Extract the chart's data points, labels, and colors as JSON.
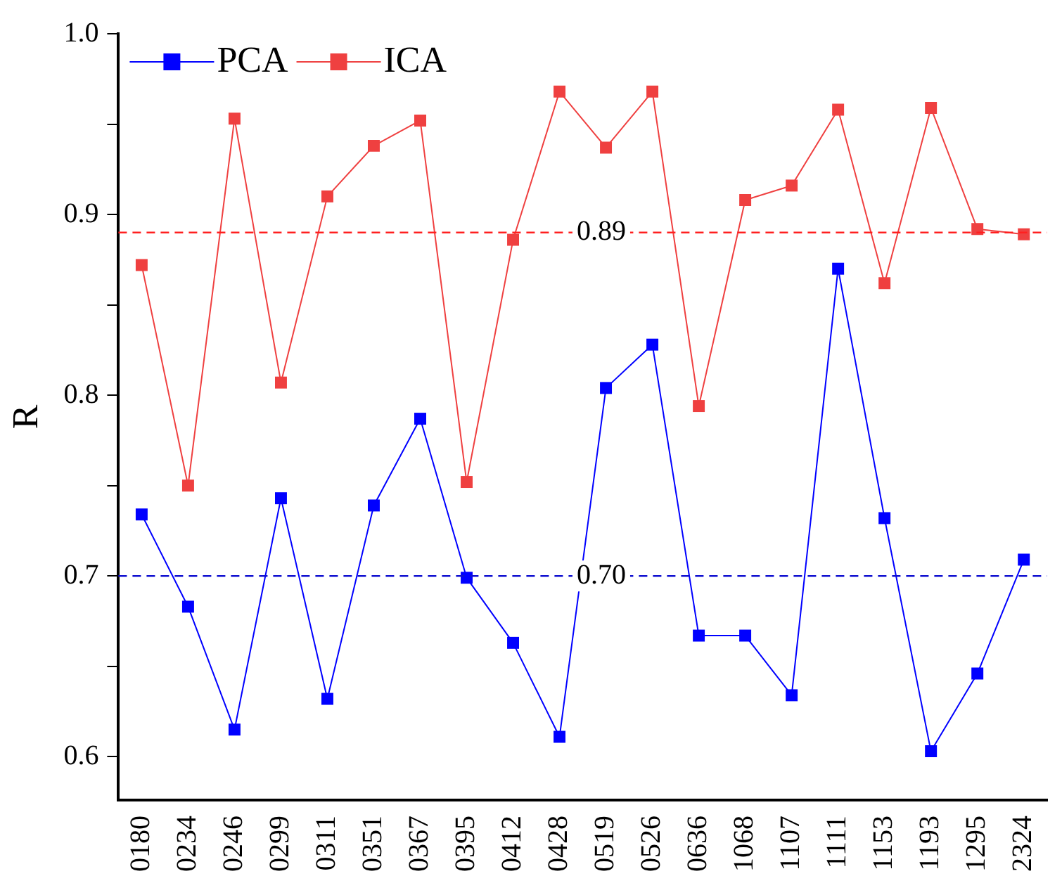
{
  "chart_data": {
    "type": "line",
    "ylabel": "R",
    "categories": [
      "0180",
      "0234",
      "0246",
      "0299",
      "0311",
      "0351",
      "0367",
      "0395",
      "0412",
      "0428",
      "0519",
      "0526",
      "0636",
      "1068",
      "1107",
      "1111",
      "1153",
      "1193",
      "1295",
      "2324"
    ],
    "series": [
      {
        "name": "PCA",
        "color": "#0000ff",
        "values": [
          0.734,
          0.683,
          0.615,
          0.743,
          0.632,
          0.739,
          0.787,
          0.699,
          0.663,
          0.611,
          0.804,
          0.828,
          0.667,
          0.667,
          0.634,
          0.87,
          0.732,
          0.603,
          0.646,
          0.709
        ]
      },
      {
        "name": "ICA",
        "color": "#ef4040",
        "values": [
          0.872,
          0.75,
          0.953,
          0.807,
          0.91,
          0.938,
          0.952,
          0.752,
          0.886,
          0.968,
          0.937,
          0.968,
          0.794,
          0.908,
          0.916,
          0.958,
          0.862,
          0.959,
          0.892,
          0.889
        ]
      }
    ],
    "ylim": [
      0.576,
      1.0
    ],
    "yticks": [
      {
        "value": 0.6,
        "label": "0.6"
      },
      {
        "value": 0.65,
        "label": null
      },
      {
        "value": 0.7,
        "label": "0.7"
      },
      {
        "value": 0.75,
        "label": null
      },
      {
        "value": 0.8,
        "label": "0.8"
      },
      {
        "value": 0.85,
        "label": null
      },
      {
        "value": 0.9,
        "label": "0.9"
      },
      {
        "value": 0.95,
        "label": null
      },
      {
        "value": 1.0,
        "label": "1.0"
      }
    ],
    "ref_lines": [
      {
        "axis": "y",
        "value": 0.89,
        "label": "0.89",
        "color": "#ff2020",
        "line_style": "dashed"
      },
      {
        "axis": "y",
        "value": 0.7,
        "label": "0.70",
        "color": "#1010d0",
        "line_style": "dashed"
      }
    ],
    "grid": false,
    "legend": "top left",
    "marker": "square",
    "line_style": "solid"
  }
}
